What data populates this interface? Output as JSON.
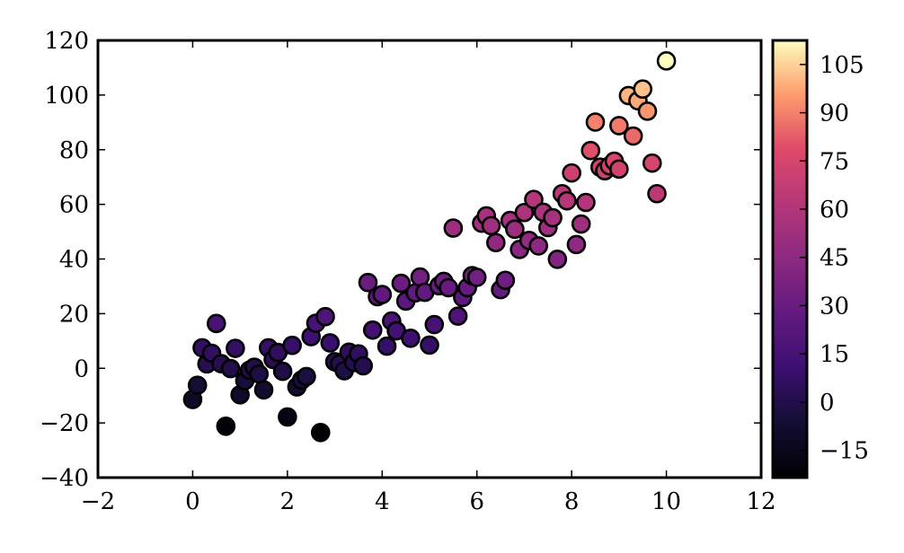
{
  "chart_data": {
    "type": "scatter",
    "title": "",
    "xlabel": "",
    "ylabel": "",
    "xlim": [
      -2,
      12
    ],
    "ylim": [
      -40,
      120
    ],
    "x_ticks": [
      -2,
      0,
      2,
      4,
      6,
      8,
      10,
      12
    ],
    "x_tick_labels": [
      "−2",
      "0",
      "2",
      "4",
      "6",
      "8",
      "10",
      "12"
    ],
    "y_ticks": [
      -40,
      -20,
      0,
      20,
      40,
      60,
      80,
      100,
      120
    ],
    "y_tick_labels": [
      "−40",
      "−20",
      "0",
      "20",
      "40",
      "60",
      "80",
      "100",
      "120"
    ],
    "grid": false,
    "marker_edge_color": "#000000",
    "colorbar": {
      "colormap": "magma",
      "range": [
        -23.5,
        112.5
      ],
      "ticks": [
        -15,
        0,
        15,
        30,
        45,
        60,
        75,
        90,
        105
      ],
      "tick_labels": [
        "−15",
        "0",
        "15",
        "30",
        "45",
        "60",
        "75",
        "90",
        "105"
      ]
    },
    "points": [
      {
        "x": 0.0,
        "y": -11.4
      },
      {
        "x": 0.1,
        "y": -6.2
      },
      {
        "x": 0.2,
        "y": 7.5
      },
      {
        "x": 0.3,
        "y": 1.6
      },
      {
        "x": 0.4,
        "y": 5.5
      },
      {
        "x": 0.5,
        "y": 16.4
      },
      {
        "x": 0.6,
        "y": 1.7
      },
      {
        "x": 0.7,
        "y": -21.2
      },
      {
        "x": 0.8,
        "y": -0.1
      },
      {
        "x": 0.9,
        "y": 7.3
      },
      {
        "x": 1.0,
        "y": -9.7
      },
      {
        "x": 1.1,
        "y": -4.5
      },
      {
        "x": 1.2,
        "y": -0.7
      },
      {
        "x": 1.3,
        "y": 0.4
      },
      {
        "x": 1.4,
        "y": -2.1
      },
      {
        "x": 1.5,
        "y": -7.9
      },
      {
        "x": 1.6,
        "y": 7.5
      },
      {
        "x": 1.7,
        "y": 3.2
      },
      {
        "x": 1.8,
        "y": 5.8
      },
      {
        "x": 1.9,
        "y": -1.1
      },
      {
        "x": 2.0,
        "y": -17.8
      },
      {
        "x": 2.1,
        "y": 8.4
      },
      {
        "x": 2.2,
        "y": -6.8
      },
      {
        "x": 2.3,
        "y": -4.3
      },
      {
        "x": 2.4,
        "y": -3.0
      },
      {
        "x": 2.5,
        "y": 11.6
      },
      {
        "x": 2.6,
        "y": 16.5
      },
      {
        "x": 2.7,
        "y": -23.5
      },
      {
        "x": 2.8,
        "y": 18.9
      },
      {
        "x": 2.9,
        "y": 9.3
      },
      {
        "x": 3.0,
        "y": 2.4
      },
      {
        "x": 3.1,
        "y": 1.6
      },
      {
        "x": 3.2,
        "y": -0.9
      },
      {
        "x": 3.3,
        "y": 5.9
      },
      {
        "x": 3.4,
        "y": 2.1
      },
      {
        "x": 3.5,
        "y": 5.3
      },
      {
        "x": 3.6,
        "y": 0.9
      },
      {
        "x": 3.7,
        "y": 31.4
      },
      {
        "x": 3.8,
        "y": 14.0
      },
      {
        "x": 3.9,
        "y": 26.2
      },
      {
        "x": 4.0,
        "y": 27.0
      },
      {
        "x": 4.1,
        "y": 8.1
      },
      {
        "x": 4.2,
        "y": 17.3
      },
      {
        "x": 4.3,
        "y": 13.7
      },
      {
        "x": 4.4,
        "y": 31.1
      },
      {
        "x": 4.5,
        "y": 24.6
      },
      {
        "x": 4.6,
        "y": 11.0
      },
      {
        "x": 4.7,
        "y": 27.6
      },
      {
        "x": 4.8,
        "y": 33.4
      },
      {
        "x": 4.9,
        "y": 27.8
      },
      {
        "x": 5.0,
        "y": 8.5
      },
      {
        "x": 5.1,
        "y": 16.0
      },
      {
        "x": 5.2,
        "y": 30.2
      },
      {
        "x": 5.3,
        "y": 31.8
      },
      {
        "x": 5.4,
        "y": 29.5
      },
      {
        "x": 5.5,
        "y": 51.3
      },
      {
        "x": 5.6,
        "y": 19.1
      },
      {
        "x": 5.7,
        "y": 25.9
      },
      {
        "x": 5.8,
        "y": 29.5
      },
      {
        "x": 5.9,
        "y": 33.9
      },
      {
        "x": 6.0,
        "y": 33.3
      },
      {
        "x": 6.1,
        "y": 53.1
      },
      {
        "x": 6.2,
        "y": 55.8
      },
      {
        "x": 6.3,
        "y": 52.2
      },
      {
        "x": 6.4,
        "y": 46.0
      },
      {
        "x": 6.5,
        "y": 28.8
      },
      {
        "x": 6.6,
        "y": 32.2
      },
      {
        "x": 6.7,
        "y": 54.1
      },
      {
        "x": 6.8,
        "y": 50.9
      },
      {
        "x": 6.9,
        "y": 43.5
      },
      {
        "x": 7.0,
        "y": 57.0
      },
      {
        "x": 7.1,
        "y": 46.8
      },
      {
        "x": 7.2,
        "y": 61.8
      },
      {
        "x": 7.3,
        "y": 44.8
      },
      {
        "x": 7.4,
        "y": 57.1
      },
      {
        "x": 7.5,
        "y": 51.5
      },
      {
        "x": 7.6,
        "y": 55.1
      },
      {
        "x": 7.7,
        "y": 39.9
      },
      {
        "x": 7.8,
        "y": 63.9
      },
      {
        "x": 7.9,
        "y": 61.3
      },
      {
        "x": 8.0,
        "y": 71.5
      },
      {
        "x": 8.1,
        "y": 45.3
      },
      {
        "x": 8.2,
        "y": 52.8
      },
      {
        "x": 8.3,
        "y": 60.7
      },
      {
        "x": 8.4,
        "y": 79.7
      },
      {
        "x": 8.5,
        "y": 90.1
      },
      {
        "x": 8.6,
        "y": 73.6
      },
      {
        "x": 8.7,
        "y": 72.3
      },
      {
        "x": 8.8,
        "y": 74.1
      },
      {
        "x": 8.9,
        "y": 75.8
      },
      {
        "x": 9.0,
        "y": 88.8
      },
      {
        "x": 9.0,
        "y": 72.9
      },
      {
        "x": 9.2,
        "y": 99.8
      },
      {
        "x": 9.3,
        "y": 85.0
      },
      {
        "x": 9.4,
        "y": 97.9
      },
      {
        "x": 9.5,
        "y": 102.2
      },
      {
        "x": 9.6,
        "y": 94.1
      },
      {
        "x": 9.7,
        "y": 75.1
      },
      {
        "x": 9.8,
        "y": 63.9
      },
      {
        "x": 10.0,
        "y": 112.5
      }
    ]
  }
}
